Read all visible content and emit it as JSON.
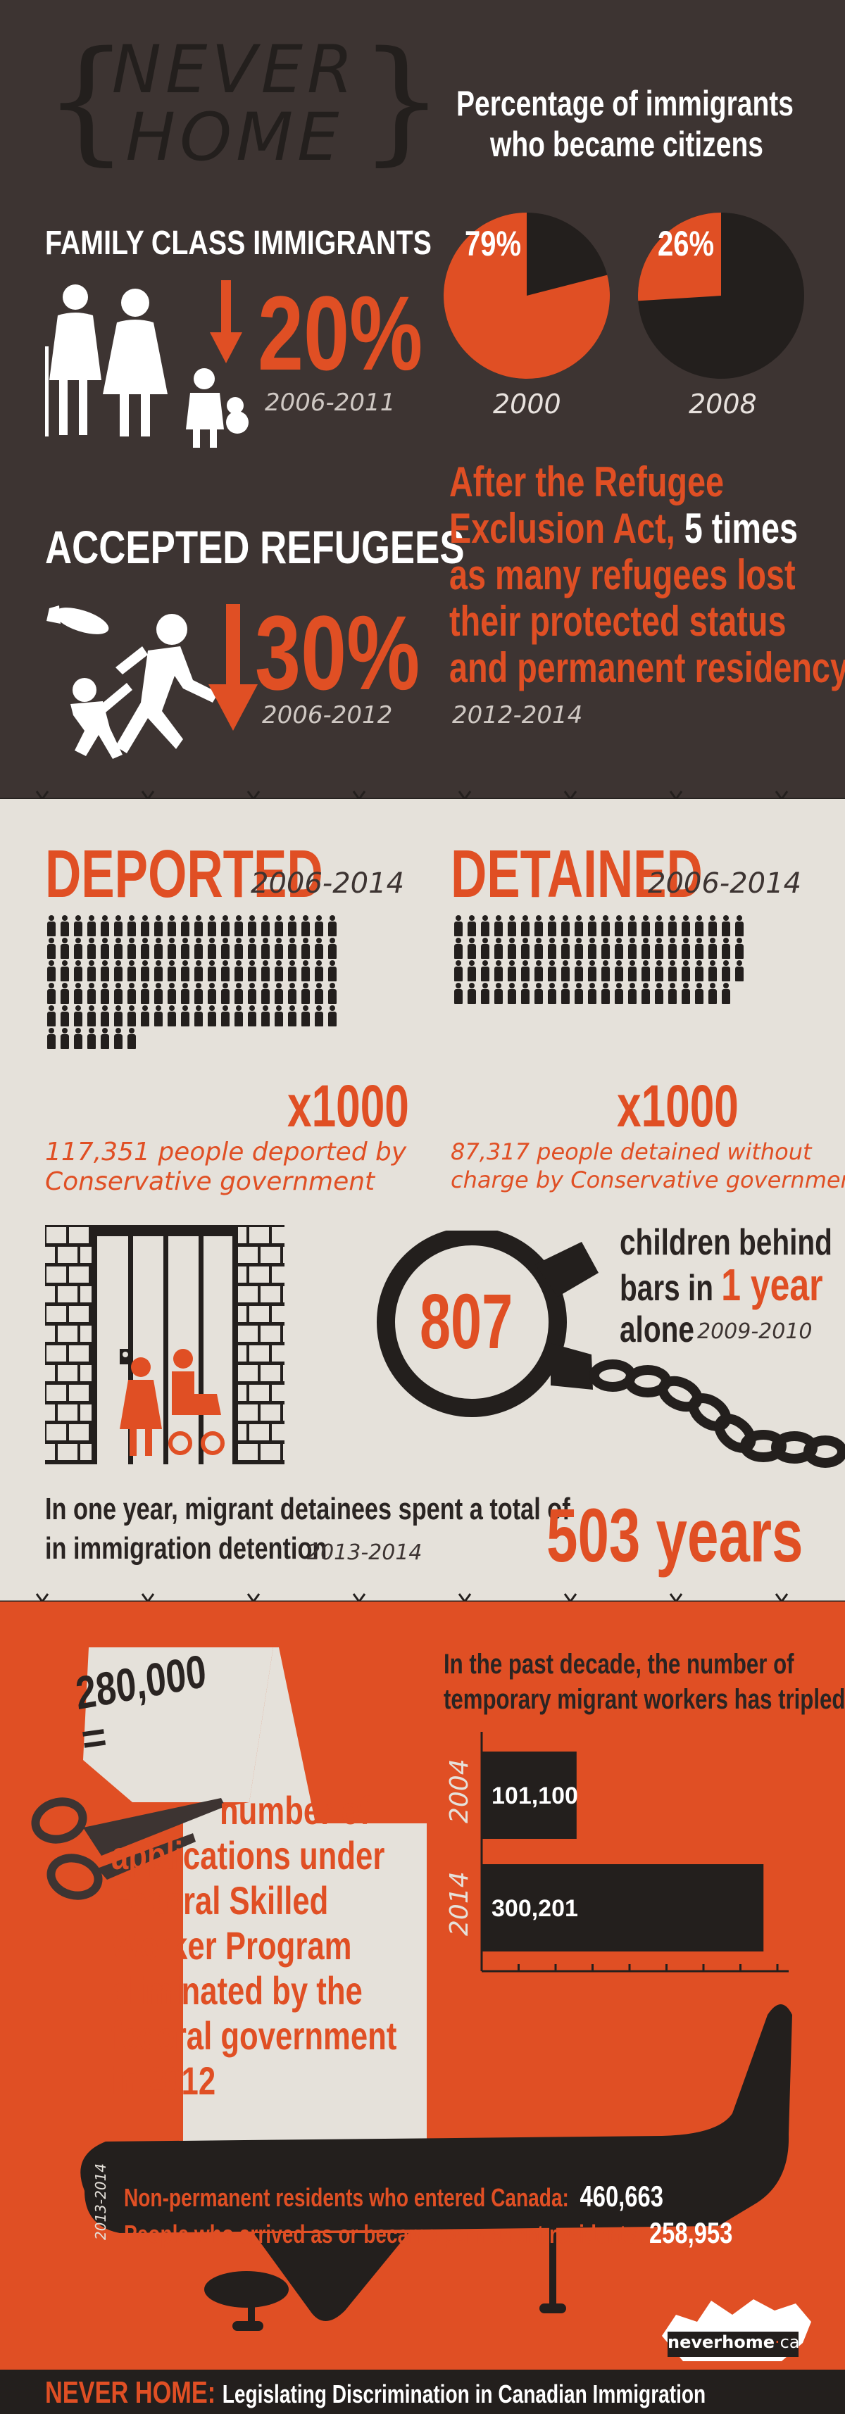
{
  "header": {
    "logo_line1": "NEVER",
    "logo_line2": "HOME",
    "pie_title_line1": "Percentage of immigrants",
    "pie_title_line2": "who became citizens"
  },
  "family": {
    "title": "FAMILY CLASS IMMIGRANTS",
    "percent": "20%",
    "years": "2006-2011"
  },
  "citizen_pies": [
    {
      "label": "79%",
      "year": "2000",
      "value": 79
    },
    {
      "label": "26%",
      "year": "2008",
      "value": 26
    }
  ],
  "refugees": {
    "title": "ACCEPTED REFUGEES",
    "percent": "30%",
    "years": "2006-2012"
  },
  "exclusion": {
    "line1": "After the Refugee",
    "line2_a": "Exclusion Act,",
    "line2_b": "5 times",
    "line3_a": "as many",
    "line3_b": "refugees lost",
    "line4": "their protected status",
    "line5": "and permanent residency",
    "years": "2012-2014"
  },
  "deported": {
    "title": "DEPORTED",
    "years": "2006-2014",
    "multiplier": "x1000",
    "caption_line1": "117,351 people deported by",
    "caption_line2": "Conservative government",
    "icon_count": 117
  },
  "detained": {
    "title": "DETAINED",
    "years": "2006-2014",
    "multiplier": "x1000",
    "caption_line1": "87,317 people detained without",
    "caption_line2": "charge by Conservative government",
    "icon_count": 87
  },
  "children": {
    "count": "807",
    "line1": "children behind",
    "line2_a": "bars in",
    "line2_b": "1 year",
    "line3": "alone",
    "years": "2009-2010"
  },
  "detention_time": {
    "line1": "In one year, migrant detainees spent a total of",
    "line2": "in immigration detention",
    "years": "2013-2014",
    "total": "503 years"
  },
  "applications": {
    "number": "280,000",
    "equals": "=",
    "line1": "number of",
    "line2": "applications under",
    "line3": "Federal Skilled",
    "line4": "Worker Program",
    "line5": "eliminated by the",
    "line6": "federal government",
    "line7": "in 2012"
  },
  "workers": {
    "title_line1": "In the past decade, the number of",
    "title_line2": "temporary migrant workers has tripled"
  },
  "chart_data": {
    "type": "bar",
    "orientation": "horizontal",
    "categories": [
      "2004",
      "2014"
    ],
    "values": [
      101100,
      300201
    ],
    "value_labels": [
      "101,100",
      "300,201"
    ],
    "title": "In the past decade, the number of temporary migrant workers has tripled"
  },
  "plane": {
    "years": "2013-2014",
    "row1_label": "Non-permanent residents who entered Canada:",
    "row1_value": "460,663",
    "row2_label": "People who arrived as or became permanent residents:",
    "row2_value": "258,953"
  },
  "footer": {
    "brand": "NEVER HOME:",
    "subtitle": "Legislating Discrimination in Canadian Immigration",
    "badge_a": "neverhome",
    "badge_b": "ca"
  },
  "colors": {
    "accent": "#e04f24",
    "dark": "#3d3432",
    "light": "#e5e1da",
    "ink": "#231f1d"
  }
}
